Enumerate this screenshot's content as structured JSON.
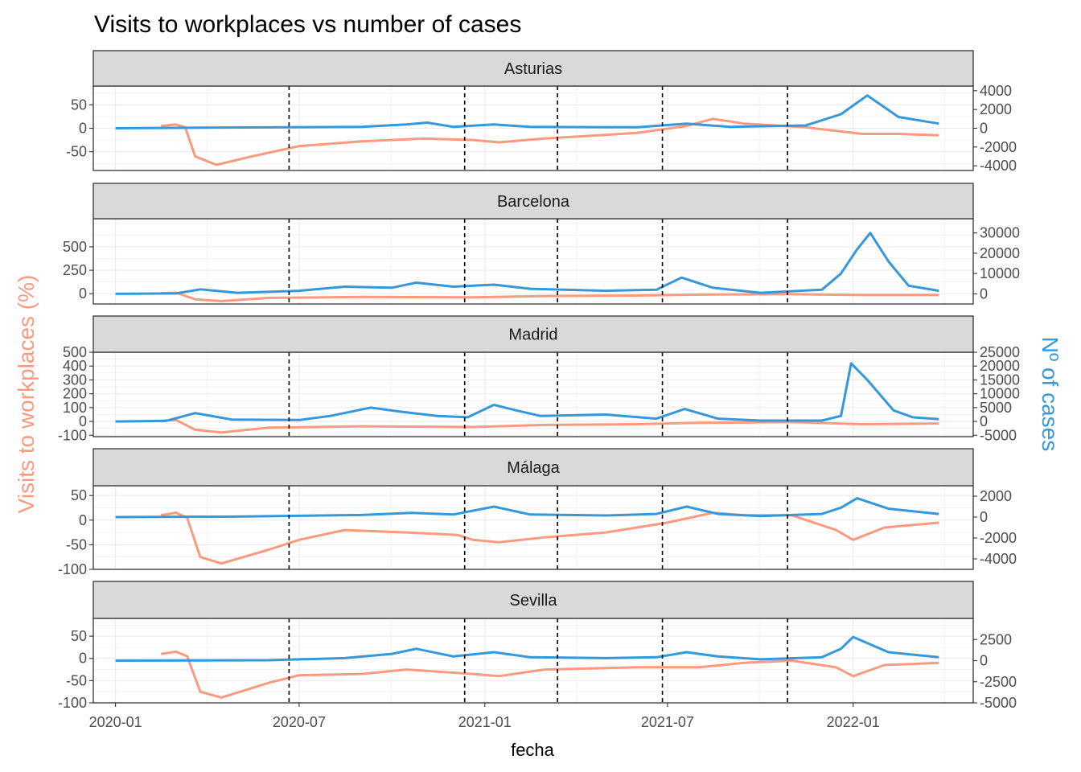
{
  "chart_data": {
    "type": "line",
    "title": "Visits to workplaces vs number of cases",
    "xlabel": "fecha",
    "ylabel_left": "Visits to workplaces (%)",
    "ylabel_right": "Nº of cases",
    "x_ticks": [
      "2020-01",
      "2020-07",
      "2021-01",
      "2021-07",
      "2022-01"
    ],
    "x_range": [
      "2019-12-10",
      "2022-04-30"
    ],
    "vlines": [
      "2020-06-21",
      "2020-12-12",
      "2021-03-14",
      "2021-06-26",
      "2021-10-28"
    ],
    "colors": {
      "visits": "#fb9a7f",
      "cases": "#3498db"
    },
    "grid": true,
    "panels": [
      {
        "name": "Asturias",
        "left_range": [
          -90,
          90
        ],
        "left_ticks": [
          50,
          0,
          -50
        ],
        "right_range": [
          -4500,
          4500
        ],
        "right_ticks": [
          4000,
          2000,
          0,
          -2000,
          -4000
        ],
        "series": [
          {
            "name": "visits",
            "x": [
              "2020-02-15",
              "2020-03-01",
              "2020-03-10",
              "2020-03-20",
              "2020-04-10",
              "2020-05-15",
              "2020-07-01",
              "2020-09-01",
              "2020-11-01",
              "2020-12-20",
              "2021-01-15",
              "2021-03-01",
              "2021-06-01",
              "2021-07-20",
              "2021-08-15",
              "2021-09-15",
              "2021-11-15",
              "2022-01-10",
              "2022-02-15",
              "2022-03-27"
            ],
            "y": [
              5,
              8,
              2,
              -60,
              -78,
              -60,
              -38,
              -28,
              -22,
              -25,
              -30,
              -22,
              -10,
              5,
              20,
              10,
              2,
              -12,
              -12,
              -15
            ]
          },
          {
            "name": "cases",
            "x": [
              "2020-01-01",
              "2020-03-15",
              "2020-09-01",
              "2020-10-15",
              "2020-11-05",
              "2020-12-01",
              "2021-01-10",
              "2021-02-15",
              "2021-06-01",
              "2021-07-20",
              "2021-09-01",
              "2021-11-15",
              "2021-12-20",
              "2022-01-15",
              "2022-02-15",
              "2022-03-27"
            ],
            "y": [
              0,
              50,
              150,
              400,
              600,
              150,
              400,
              150,
              100,
              500,
              150,
              300,
              1500,
              3500,
              1200,
              500
            ]
          }
        ]
      },
      {
        "name": "Barcelona",
        "left_range": [
          -110,
          800
        ],
        "left_ticks": [
          500,
          250,
          0
        ],
        "right_range": [
          -5000,
          37000
        ],
        "right_ticks": [
          30000,
          20000,
          10000,
          0
        ],
        "series": [
          {
            "name": "visits",
            "x": [
              "2020-02-15",
              "2020-03-01",
              "2020-03-20",
              "2020-04-15",
              "2020-06-01",
              "2020-09-01",
              "2020-12-20",
              "2021-03-01",
              "2021-06-01",
              "2021-08-01",
              "2021-11-01",
              "2022-01-10",
              "2022-03-27"
            ],
            "y": [
              5,
              10,
              -60,
              -80,
              -45,
              -35,
              -40,
              -25,
              -20,
              -10,
              -5,
              -15,
              -15
            ]
          },
          {
            "name": "cases",
            "x": [
              "2020-01-01",
              "2020-03-01",
              "2020-03-25",
              "2020-05-01",
              "2020-07-01",
              "2020-08-15",
              "2020-10-01",
              "2020-10-25",
              "2020-12-01",
              "2021-01-10",
              "2021-02-15",
              "2021-05-01",
              "2021-06-20",
              "2021-07-15",
              "2021-08-15",
              "2021-10-01",
              "2021-12-01",
              "2021-12-20",
              "2022-01-05",
              "2022-01-18",
              "2022-02-05",
              "2022-02-25",
              "2022-03-27"
            ],
            "y": [
              0,
              200,
              2200,
              500,
              1500,
              3500,
              3000,
              5500,
              3500,
              4500,
              2500,
              1500,
              2000,
              8000,
              3000,
              500,
              2000,
              10000,
              22000,
              30000,
              16000,
              4000,
              1500
            ]
          }
        ]
      },
      {
        "name": "Madrid",
        "left_range": [
          -110,
          500
        ],
        "left_ticks": [
          500,
          400,
          300,
          200,
          100,
          0,
          -100
        ],
        "right_range": [
          -5500,
          25000
        ],
        "right_ticks": [
          25000,
          20000,
          15000,
          10000,
          5000,
          0,
          -5000
        ],
        "series": [
          {
            "name": "visits",
            "x": [
              "2020-02-15",
              "2020-03-01",
              "2020-03-20",
              "2020-04-15",
              "2020-06-01",
              "2020-09-01",
              "2020-12-20",
              "2021-03-01",
              "2021-06-01",
              "2021-08-01",
              "2021-11-01",
              "2022-01-10",
              "2022-03-27"
            ],
            "y": [
              5,
              10,
              -60,
              -80,
              -45,
              -35,
              -40,
              -25,
              -20,
              -10,
              -5,
              -20,
              -15
            ]
          },
          {
            "name": "cases",
            "x": [
              "2020-01-01",
              "2020-02-20",
              "2020-03-20",
              "2020-04-25",
              "2020-07-01",
              "2020-08-01",
              "2020-09-10",
              "2020-10-10",
              "2020-11-15",
              "2020-12-15",
              "2021-01-10",
              "2021-02-01",
              "2021-02-25",
              "2021-05-01",
              "2021-06-20",
              "2021-07-18",
              "2021-08-20",
              "2021-10-01",
              "2021-12-01",
              "2021-12-20",
              "2021-12-30",
              "2022-01-15",
              "2022-02-10",
              "2022-03-01",
              "2022-03-27"
            ],
            "y": [
              0,
              200,
              3000,
              700,
              500,
              2000,
              5000,
              3500,
              2000,
              1500,
              6000,
              4000,
              2000,
              2500,
              1000,
              4500,
              1000,
              300,
              300,
              2000,
              21000,
              15000,
              4000,
              1500,
              800
            ]
          }
        ]
      },
      {
        "name": "Málaga",
        "left_range": [
          -100,
          70
        ],
        "left_ticks": [
          50,
          0,
          -50,
          -100
        ],
        "right_range": [
          -5000,
          3000
        ],
        "right_ticks": [
          2000,
          0,
          -2000,
          -4000
        ],
        "series": [
          {
            "name": "visits",
            "x": [
              "2020-02-15",
              "2020-03-01",
              "2020-03-12",
              "2020-03-25",
              "2020-04-15",
              "2020-06-01",
              "2020-07-01",
              "2020-08-15",
              "2020-10-15",
              "2020-12-05",
              "2020-12-20",
              "2021-01-15",
              "2021-03-01",
              "2021-05-01",
              "2021-07-01",
              "2021-08-15",
              "2021-09-15",
              "2021-11-01",
              "2021-12-15",
              "2022-01-01",
              "2022-02-01",
              "2022-03-27"
            ],
            "y": [
              10,
              15,
              5,
              -75,
              -88,
              -60,
              -40,
              -20,
              -25,
              -30,
              -40,
              -45,
              -35,
              -25,
              -5,
              15,
              10,
              10,
              -20,
              -40,
              -15,
              -5
            ]
          },
          {
            "name": "cases",
            "x": [
              "2020-01-01",
              "2020-05-01",
              "2020-09-01",
              "2020-10-20",
              "2020-12-01",
              "2021-01-10",
              "2021-02-15",
              "2021-05-01",
              "2021-06-20",
              "2021-07-20",
              "2021-08-20",
              "2021-10-01",
              "2021-12-01",
              "2021-12-20",
              "2022-01-05",
              "2022-02-05",
              "2022-03-27"
            ],
            "y": [
              0,
              50,
              200,
              400,
              250,
              1000,
              250,
              150,
              300,
              1000,
              300,
              100,
              300,
              900,
              1800,
              800,
              300
            ]
          }
        ]
      },
      {
        "name": "Sevilla",
        "left_range": [
          -100,
          90
        ],
        "left_ticks": [
          50,
          0,
          -50,
          -100
        ],
        "right_range": [
          -5000,
          5000
        ],
        "right_ticks": [
          2500,
          0,
          -2500,
          -5000
        ],
        "series": [
          {
            "name": "visits",
            "x": [
              "2020-02-15",
              "2020-03-01",
              "2020-03-12",
              "2020-03-25",
              "2020-04-15",
              "2020-06-01",
              "2020-07-01",
              "2020-09-01",
              "2020-10-15",
              "2020-12-20",
              "2021-01-15",
              "2021-03-01",
              "2021-06-01",
              "2021-08-01",
              "2021-09-15",
              "2021-11-01",
              "2021-12-15",
              "2022-01-01",
              "2022-02-01",
              "2022-03-27"
            ],
            "y": [
              10,
              15,
              5,
              -75,
              -88,
              -55,
              -38,
              -35,
              -25,
              -35,
              -40,
              -25,
              -20,
              -20,
              -10,
              -5,
              -20,
              -40,
              -15,
              -10
            ]
          },
          {
            "name": "cases",
            "x": [
              "2020-01-01",
              "2020-06-01",
              "2020-08-15",
              "2020-10-01",
              "2020-10-25",
              "2020-12-01",
              "2021-01-10",
              "2021-02-15",
              "2021-05-01",
              "2021-06-20",
              "2021-07-20",
              "2021-08-20",
              "2021-10-01",
              "2021-12-01",
              "2021-12-20",
              "2022-01-01",
              "2022-02-05",
              "2022-03-27"
            ],
            "y": [
              0,
              50,
              300,
              800,
              1400,
              500,
              1000,
              400,
              300,
              400,
              1000,
              500,
              150,
              400,
              1400,
              2800,
              1000,
              400
            ]
          }
        ]
      }
    ]
  }
}
